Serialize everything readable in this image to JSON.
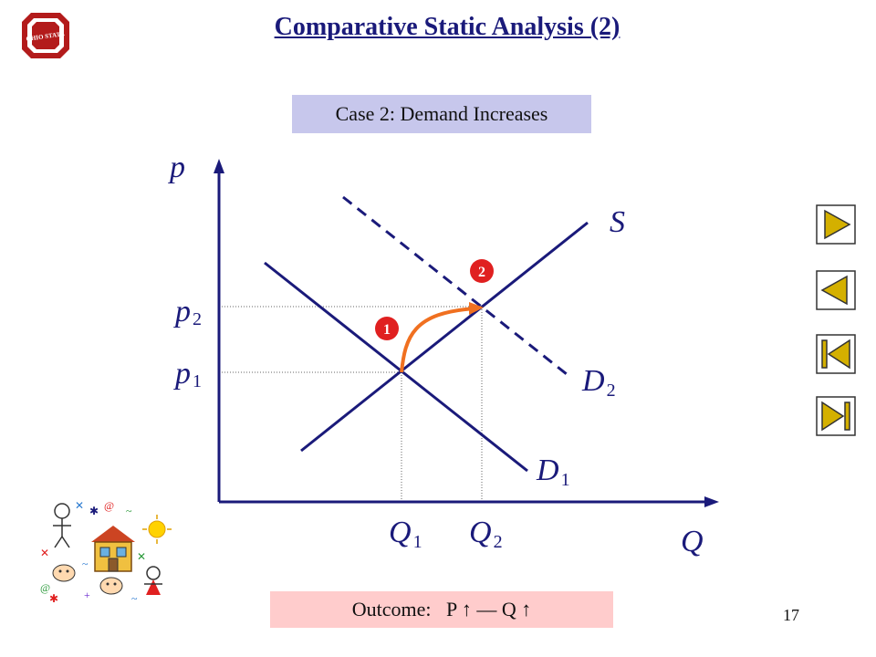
{
  "title": "Comparative Static Analysis (2)",
  "case_label": "Case 2: Demand Increases",
  "outcome": {
    "label": "Outcome:",
    "p": "P",
    "up1": "↑",
    "dash": "—",
    "q": "Q",
    "up2": "↑"
  },
  "page_number": "17",
  "logo_text": "OHIO STATE",
  "diagram": {
    "y_axis": "p",
    "x_axis": "Q",
    "supply": "S",
    "d1_base": "D",
    "d1_sub": "1",
    "d2_base": "D",
    "d2_sub": "2",
    "p1_base": "p",
    "p1_sub": "1",
    "p2_base": "p",
    "p2_sub": "2",
    "q1_base": "Q",
    "q1_sub": "1",
    "q2_base": "Q",
    "q2_sub": "2",
    "marker1": "1",
    "marker2": "2"
  },
  "colors": {
    "curve": "#1a1a7a",
    "path": "#f07020",
    "marker": "#e02020",
    "nav_fill": "#d4b000"
  },
  "nav_icons": [
    "play-forward-icon",
    "play-back-icon",
    "skip-to-start-icon",
    "skip-to-end-icon"
  ]
}
